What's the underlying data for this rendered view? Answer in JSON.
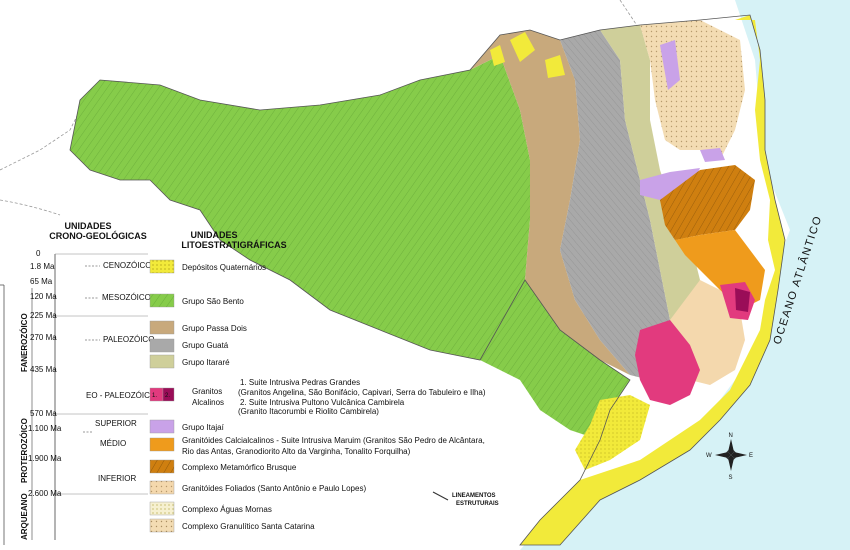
{
  "ocean_label": "OCEANO ATLÂNTICO",
  "chrono_header": [
    "UNIDADES",
    "CRONO-GEOLÓGICAS"
  ],
  "litho_header": [
    "UNIDADES",
    "LITOESTRATIGRÁFICAS"
  ],
  "eons": [
    "FANEROZÓICO",
    "PROTEROZÓICO",
    "ARQUEANO"
  ],
  "ages": [
    "0",
    "1.8 Ma",
    "65 Ma",
    "120 Ma",
    "225 Ma",
    "270 Ma",
    "435 Ma",
    "570 Ma",
    "1.100 Ma",
    "1.900 Ma",
    "2.600 Ma"
  ],
  "eras": [
    "CENOZÓICO",
    "MESOZÓICO",
    "PALEOZÓICO",
    "EO - PALEOZÓICO",
    "SUPERIOR",
    "MÉDIO",
    "INFERIOR"
  ],
  "units": [
    {
      "name": "Depósitos Quaternários",
      "color": "#f2ea3a"
    },
    {
      "name": "Grupo São Bento",
      "color": "#86cc4a"
    },
    {
      "name": "Grupo Passa Dois",
      "color": "#c8a97c"
    },
    {
      "name": "Grupo Guatá",
      "color": "#a9a9a9"
    },
    {
      "name": "Grupo Itararé",
      "color": "#cfcf9a"
    },
    {
      "name": "Granitos Alcalinos",
      "color": "#e23a7e"
    },
    {
      "name": "Grupo Itajaí",
      "color": "#c9a2e8"
    },
    {
      "name": "Granitóides Calcialcalinos - Suite Intrusiva Maruim (Granitos São Pedro de Alcântara, Rio das Antas, Granodiorito Alto da Varginha, Tonalito Forquilha)",
      "color": "#ef9b1c"
    },
    {
      "name": "Complexo Metamórfico Brusque",
      "color": "#cf7f10"
    },
    {
      "name": "Granitóides Foliados (Santo Antônio e Paulo Lopes)",
      "color": "#f4d8ad"
    },
    {
      "name": "Complexo Águas Mornas",
      "color": "#f6f0d0"
    },
    {
      "name": "Complexo Granulítico Santa Catarina",
      "color": "#f3dcb3"
    }
  ],
  "granite_swatch_numbers": [
    "1.",
    "2."
  ],
  "granite_notes": [
    "1. Suite Intrusiva Pedras Grandes",
    "(Granitos Angelina, São Bonifácio, Capivari, Serra do Tabuleiro e Ilha)",
    "2. Suite Intrusiva Pultono Vulcânica Cambirela",
    "(Granito Itacorumbi e Riolito Cambirela)"
  ],
  "lineaments_label": [
    "LINEAMENTOS",
    "ESTRUTURAIS"
  ],
  "compass": {
    "n": "N",
    "s": "S",
    "e": "E",
    "w": "W"
  },
  "colors": {
    "ocean": "#d6f2f6",
    "ocean_text": "#2a8aa8",
    "border": "#888888"
  }
}
